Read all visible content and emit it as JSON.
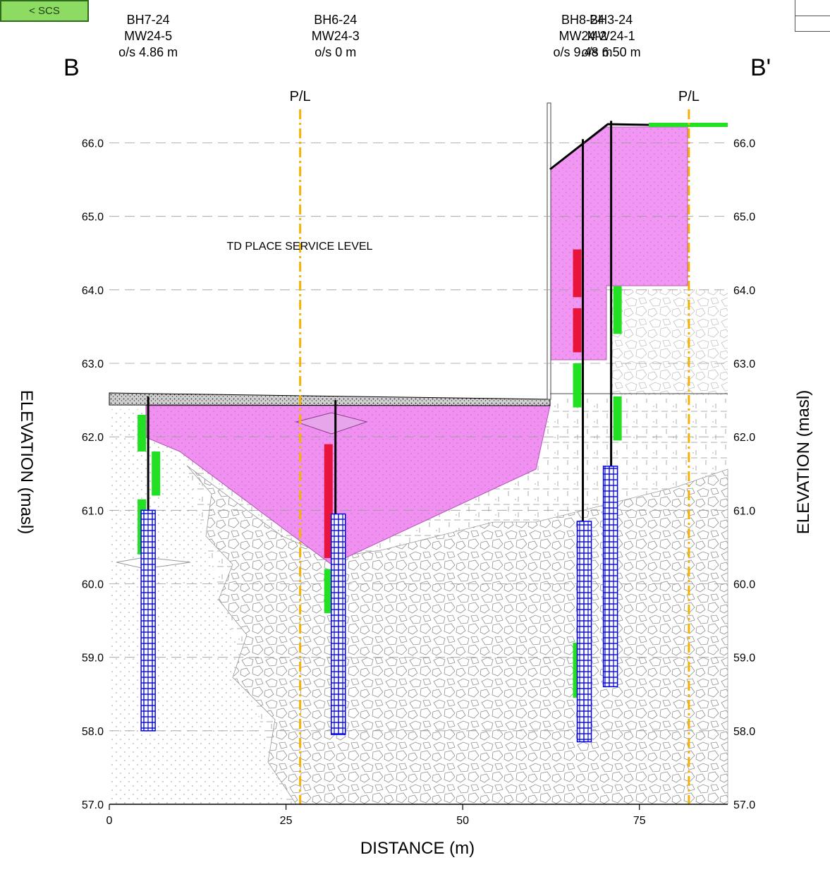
{
  "nav": {
    "back_label": "< SCS"
  },
  "section": {
    "start_label": "B",
    "end_label": "B'"
  },
  "axes": {
    "x_label": "DISTANCE (m)",
    "y_label": "ELEVATION (masl)",
    "x_ticks": [
      "0",
      "25",
      "50",
      "75"
    ],
    "y_ticks": [
      "57.0",
      "58.0",
      "59.0",
      "60.0",
      "61.0",
      "62.0",
      "63.0",
      "64.0",
      "65.0",
      "66.0"
    ],
    "x_range": [
      0,
      87.5
    ],
    "y_range": [
      57.0,
      66.6
    ]
  },
  "property_lines": [
    {
      "label": "P/L",
      "x": 27
    },
    {
      "label": "P/L",
      "x": 82
    }
  ],
  "annotation": {
    "text": "TD PLACE SERVICE LEVEL"
  },
  "boreholes": [
    {
      "name": "BH7-24",
      "well": "MW24-5",
      "offset": "o/s 4.86 m",
      "x": 5.5,
      "top": 62.55,
      "bottom": 58.0
    },
    {
      "name": "BH6-24",
      "well": "MW24-3",
      "offset": "o/s 0 m",
      "x": 32,
      "top": 62.5,
      "bottom": 57.95
    },
    {
      "name": "BH8-24",
      "well": "MW24-2",
      "offset": "o/s 9.48 m",
      "x": 67,
      "top": 66.05,
      "bottom": 57.85
    },
    {
      "name": "BH3-24",
      "well": "MW24-1",
      "offset": "o/s 6.50 m",
      "x": 71,
      "top": 66.3,
      "bottom": 58.6
    }
  ],
  "screens": [
    {
      "x": 5.5,
      "top": 61.0,
      "bottom": 58.0
    },
    {
      "x": 32.4,
      "top": 60.95,
      "bottom": 57.95
    },
    {
      "x": 67.2,
      "top": 60.85,
      "bottom": 57.85
    },
    {
      "x": 70.9,
      "top": 61.6,
      "bottom": 58.6
    }
  ],
  "samples": [
    {
      "x": 4.6,
      "top": 62.3,
      "bottom": 61.8,
      "color": "#22e022"
    },
    {
      "x": 6.6,
      "top": 61.8,
      "bottom": 61.2,
      "color": "#22e022"
    },
    {
      "x": 4.6,
      "top": 61.15,
      "bottom": 60.4,
      "color": "#22e022"
    },
    {
      "x": 31.0,
      "top": 61.9,
      "bottom": 60.35,
      "color": "#e8143c"
    },
    {
      "x": 31.0,
      "top": 60.2,
      "bottom": 59.6,
      "color": "#22e022"
    },
    {
      "x": 66.2,
      "top": 64.55,
      "bottom": 63.9,
      "color": "#e8143c"
    },
    {
      "x": 66.2,
      "top": 63.75,
      "bottom": 63.15,
      "color": "#e8143c"
    },
    {
      "x": 66.2,
      "top": 63.0,
      "bottom": 62.4,
      "color": "#22e022"
    },
    {
      "x": 66.2,
      "top": 59.2,
      "bottom": 58.45,
      "color": "#22e022"
    },
    {
      "x": 71.9,
      "top": 64.05,
      "bottom": 63.4,
      "color": "#22e022"
    },
    {
      "x": 71.9,
      "top": 62.55,
      "bottom": 61.95,
      "color": "#22e022"
    }
  ],
  "colors": {
    "contaminated_zone": "#f08cf2",
    "property_line": "#f5b300",
    "screen": "#0000ee",
    "ground": "#000000",
    "grid": "#9a9a9a"
  }
}
